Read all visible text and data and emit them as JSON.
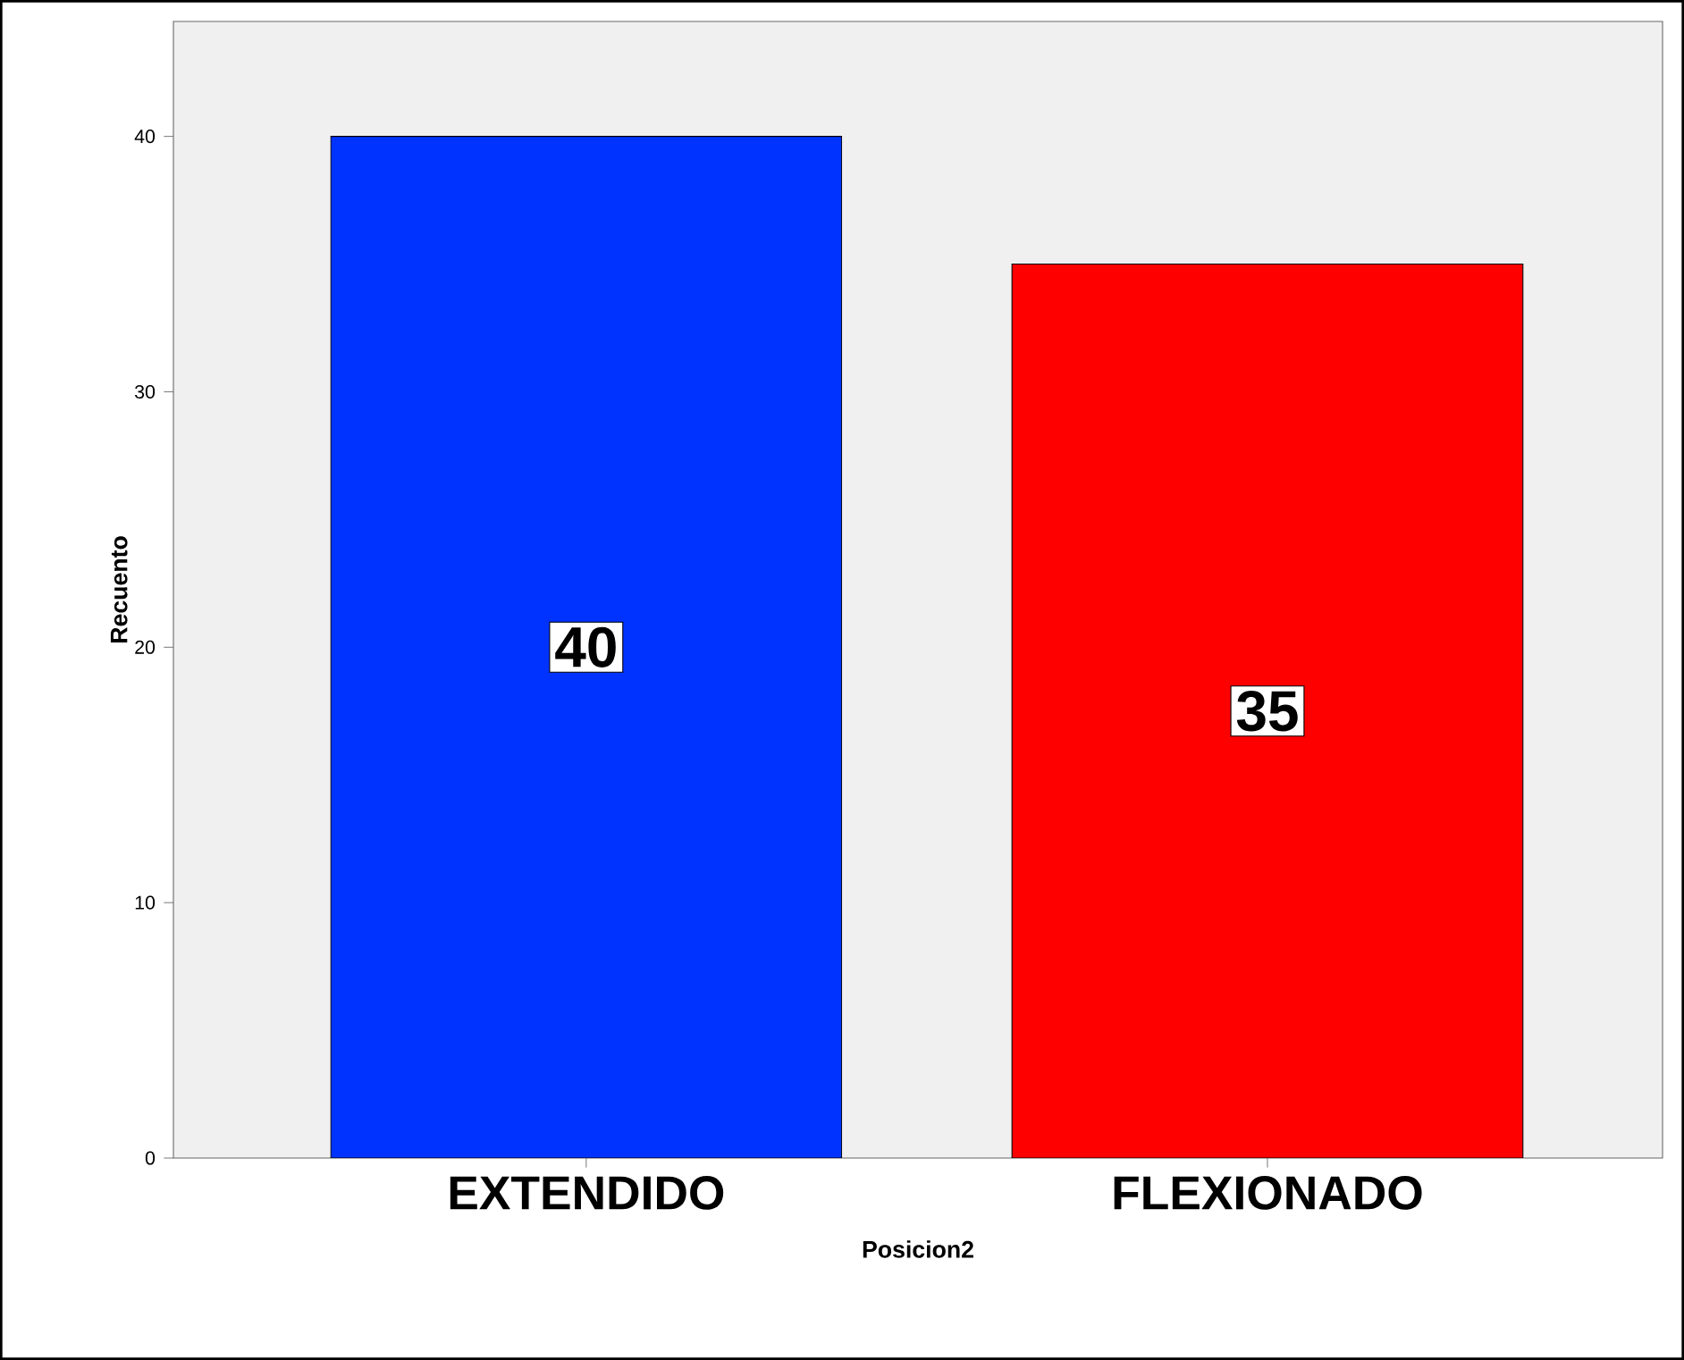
{
  "chart_data": {
    "type": "bar",
    "xlabel": "Posicion2",
    "ylabel": "Recuento",
    "categories": [
      "EXTENDIDO",
      "FLEXIONADO"
    ],
    "values": [
      40,
      35
    ],
    "colors": [
      "#0033ff",
      "#ff0000"
    ],
    "ylim": [
      0,
      44.5
    ],
    "yticks": [
      0,
      10,
      20,
      30,
      40
    ],
    "data_labels": true
  }
}
